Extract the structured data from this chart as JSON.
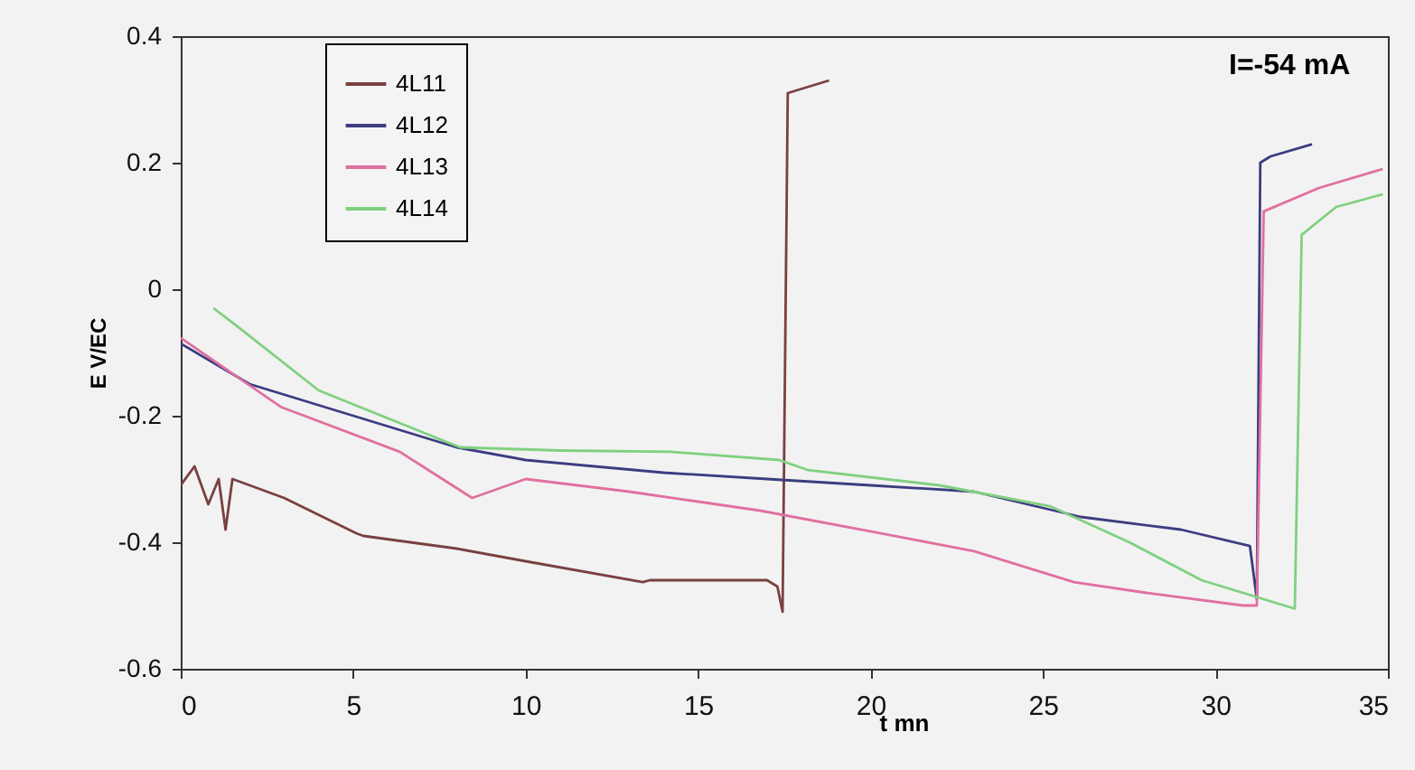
{
  "chart_data": {
    "type": "line",
    "xlabel": "t mn",
    "ylabel": "E V/EC",
    "xlim": [
      0,
      35
    ],
    "xticks": [
      0,
      5,
      10,
      15,
      20,
      25,
      30,
      35
    ],
    "ylim": [
      -0.6,
      0.4
    ],
    "yticks": [
      -0.6,
      -0.4,
      -0.2,
      0,
      0.2,
      0.4
    ],
    "grid": false,
    "legend": "top left",
    "annotations": [
      "I=-54 mA"
    ],
    "series": [
      {
        "name": "4L11",
        "color": "#7a4040",
        "x": [
          0,
          0.4,
          0.8,
          1.1,
          1.3,
          1.5,
          3,
          5.1,
          5.3,
          8,
          10,
          13.4,
          13.6,
          17,
          17.3,
          17.45,
          17.6,
          18.8
        ],
        "values": [
          -0.31,
          -0.28,
          -0.34,
          -0.3,
          -0.38,
          -0.3,
          -0.33,
          -0.386,
          -0.39,
          -0.41,
          -0.43,
          -0.463,
          -0.46,
          -0.46,
          -0.47,
          -0.51,
          0.31,
          0.33
        ]
      },
      {
        "name": "4L12",
        "color": "#3c3c80",
        "x": [
          0,
          2,
          5,
          8,
          10,
          14,
          17,
          20,
          23,
          26.1,
          29,
          31,
          31.2,
          31.3,
          31.6,
          32.8
        ],
        "values": [
          -0.086,
          -0.15,
          -0.2,
          -0.25,
          -0.27,
          -0.29,
          -0.3,
          -0.31,
          -0.32,
          -0.36,
          -0.38,
          -0.406,
          -0.49,
          0.2,
          0.21,
          0.229
        ]
      },
      {
        "name": "4L13",
        "color": "#e070a0",
        "x": [
          0,
          2.9,
          6.35,
          8.45,
          10,
          13,
          16.8,
          20.3,
          23,
          25.9,
          28,
          30.8,
          31.2,
          31.4,
          33,
          34.85
        ],
        "values": [
          -0.077,
          -0.186,
          -0.257,
          -0.33,
          -0.3,
          -0.32,
          -0.35,
          -0.386,
          -0.414,
          -0.463,
          -0.48,
          -0.5,
          -0.5,
          0.123,
          0.16,
          0.19
        ]
      },
      {
        "name": "4L14",
        "color": "#80d080",
        "x": [
          0.95,
          1.6,
          4,
          8.1,
          11,
          14.2,
          17.35,
          18.2,
          22,
          25.2,
          27.5,
          29.6,
          32.3,
          32.5,
          33.5,
          34.85
        ],
        "values": [
          -0.03,
          -0.057,
          -0.16,
          -0.25,
          -0.255,
          -0.257,
          -0.27,
          -0.286,
          -0.31,
          -0.343,
          -0.4,
          -0.46,
          -0.505,
          0.086,
          0.13,
          0.15
        ]
      }
    ]
  }
}
